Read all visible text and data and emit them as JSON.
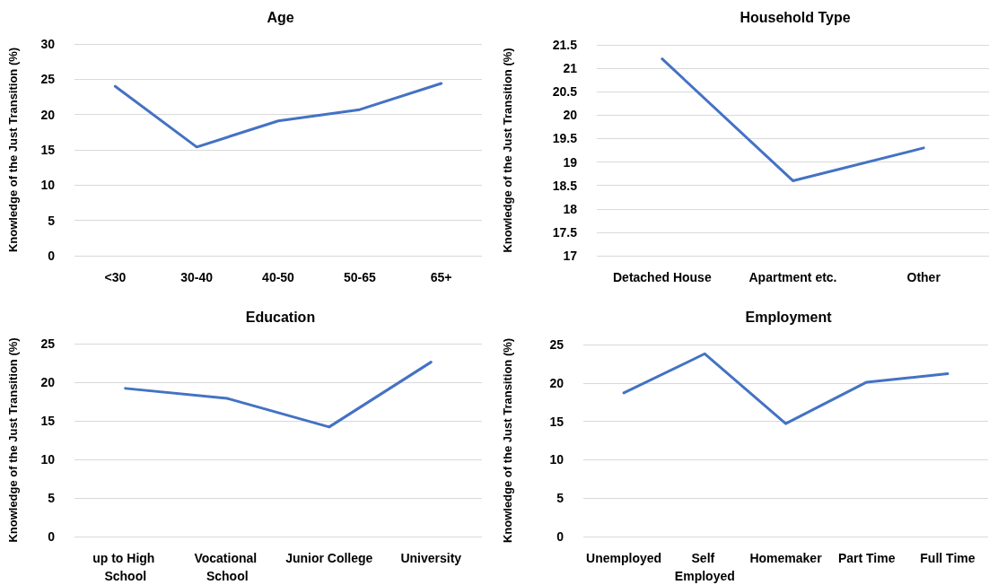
{
  "chart_data": [
    {
      "type": "line",
      "title": "Age",
      "ylabel": "Knowledge of the Just Transition (%)",
      "categories": [
        "<30",
        "30-40",
        "40-50",
        "50-65",
        "65+"
      ],
      "series": [
        {
          "color": "#4472c4",
          "values": [
            24.0,
            15.4,
            19.1,
            20.7,
            24.4
          ]
        }
      ],
      "ylim": [
        0,
        30
      ],
      "yticks": [
        0,
        5,
        10,
        15,
        20,
        25,
        30
      ],
      "grid": "y",
      "marker": "none",
      "line_style": "solid"
    },
    {
      "type": "line",
      "title": "Household Type",
      "ylabel": "Knowledge of the Just Transition (%)",
      "categories": [
        "Detached House",
        "Apartment etc.",
        "Other"
      ],
      "series": [
        {
          "color": "#4472c4",
          "values": [
            21.2,
            18.6,
            19.3
          ]
        }
      ],
      "ylim": [
        17,
        21.5
      ],
      "yticks": [
        17,
        17.5,
        18,
        18.5,
        19,
        19.5,
        20,
        20.5,
        21,
        21.5
      ],
      "grid": "y",
      "marker": "none",
      "line_style": "solid"
    },
    {
      "type": "line",
      "title": "Education",
      "ylabel": "Knowledge of the Just Transition (%)",
      "categories": [
        "up to High School",
        "Vocational School",
        "Junior College",
        "University"
      ],
      "series": [
        {
          "color": "#4472c4",
          "values": [
            19.2,
            17.9,
            14.2,
            22.6
          ]
        }
      ],
      "ylim": [
        0,
        25
      ],
      "yticks": [
        0,
        5,
        10,
        15,
        20,
        25
      ],
      "grid": "y",
      "marker": "none",
      "line_style": "solid"
    },
    {
      "type": "line",
      "title": "Employment",
      "ylabel": "Knowledge of the Just Transition (%)",
      "categories": [
        "Unemployed",
        "Self Employed",
        "Homemaker",
        "Part Time",
        "Full Time"
      ],
      "series": [
        {
          "color": "#4472c4",
          "values": [
            18.7,
            23.8,
            14.7,
            20.1,
            21.2
          ]
        }
      ],
      "ylim": [
        0,
        25
      ],
      "yticks": [
        0,
        5,
        10,
        15,
        20,
        25
      ],
      "grid": "y",
      "marker": "none",
      "line_style": "solid"
    }
  ]
}
